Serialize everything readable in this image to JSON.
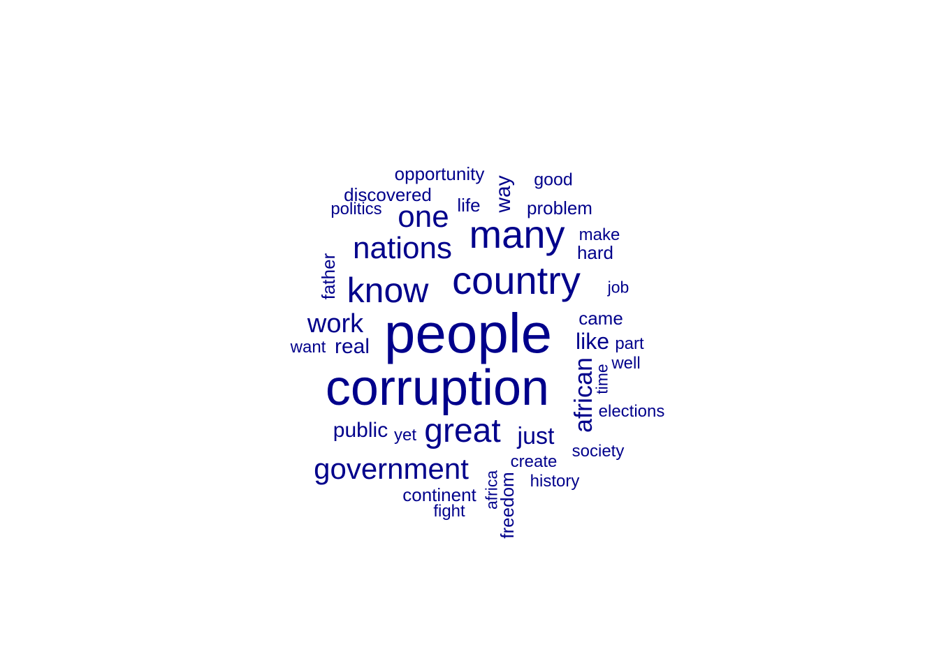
{
  "color": "#00008b",
  "words": [
    {
      "text": "people",
      "size": 80
    },
    {
      "text": "corruption",
      "size": 72
    },
    {
      "text": "country",
      "size": 56
    },
    {
      "text": "many",
      "size": 56
    },
    {
      "text": "know",
      "size": 50
    },
    {
      "text": "great",
      "size": 48
    },
    {
      "text": "nations",
      "size": 44
    },
    {
      "text": "one",
      "size": 44
    },
    {
      "text": "government",
      "size": 42
    },
    {
      "text": "work",
      "size": 38
    },
    {
      "text": "african",
      "size": 36
    },
    {
      "text": "just",
      "size": 34
    },
    {
      "text": "like",
      "size": 32
    },
    {
      "text": "real",
      "size": 30
    },
    {
      "text": "public",
      "size": 30
    },
    {
      "text": "way",
      "size": 30
    },
    {
      "text": "opportunity",
      "size": 26
    },
    {
      "text": "discovered",
      "size": 26
    },
    {
      "text": "continent",
      "size": 26
    },
    {
      "text": "problem",
      "size": 26
    },
    {
      "text": "hard",
      "size": 26
    },
    {
      "text": "came",
      "size": 26
    },
    {
      "text": "father",
      "size": 26
    },
    {
      "text": "freedom",
      "size": 26
    },
    {
      "text": "life",
      "size": 26
    },
    {
      "text": "good",
      "size": 25
    },
    {
      "text": "politics",
      "size": 24
    },
    {
      "text": "make",
      "size": 24
    },
    {
      "text": "part",
      "size": 24
    },
    {
      "text": "well",
      "size": 24
    },
    {
      "text": "elections",
      "size": 24
    },
    {
      "text": "society",
      "size": 24
    },
    {
      "text": "create",
      "size": 24
    },
    {
      "text": "history",
      "size": 24
    },
    {
      "text": "fight",
      "size": 24
    },
    {
      "text": "want",
      "size": 24
    },
    {
      "text": "yet",
      "size": 24
    },
    {
      "text": "job",
      "size": 23
    },
    {
      "text": "time",
      "size": 23
    },
    {
      "text": "africa",
      "size": 23
    }
  ]
}
